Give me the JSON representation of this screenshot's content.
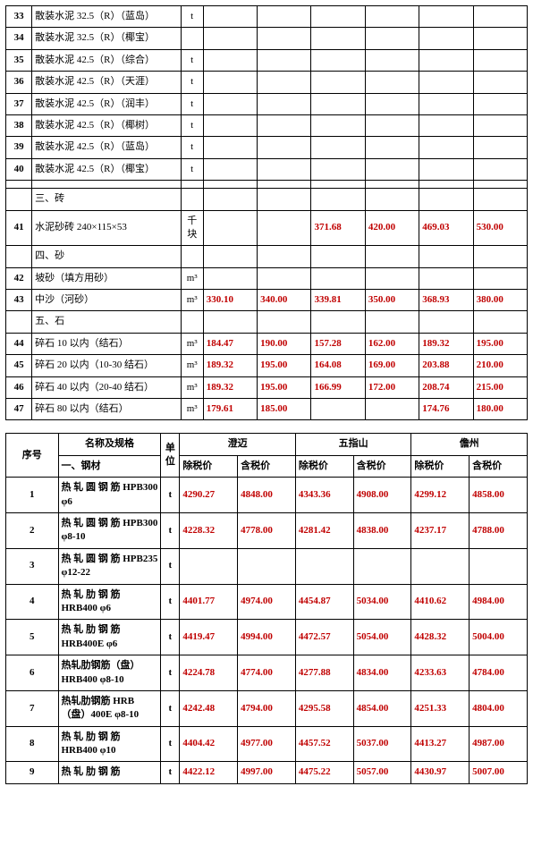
{
  "table1": {
    "cols": [
      "序号",
      "名称",
      "单位",
      "c1",
      "c2",
      "c3",
      "c4",
      "c5",
      "c6"
    ],
    "rows": [
      {
        "n": "33",
        "name": "散装水泥 32.5（R）（蓝岛）",
        "unit": "t",
        "v": [
          "",
          "",
          "",
          "",
          "",
          ""
        ]
      },
      {
        "n": "34",
        "name": "散装水泥 32.5（R）（椰宝）",
        "unit": "",
        "v": [
          "",
          "",
          "",
          "",
          "",
          ""
        ]
      },
      {
        "n": "35",
        "name": "散装水泥 42.5（R）（综合）",
        "unit": "t",
        "v": [
          "",
          "",
          "",
          "",
          "",
          ""
        ]
      },
      {
        "n": "36",
        "name": "散装水泥 42.5（R）（天涯）",
        "unit": "t",
        "v": [
          "",
          "",
          "",
          "",
          "",
          ""
        ]
      },
      {
        "n": "37",
        "name": "散装水泥 42.5（R）（润丰）",
        "unit": "t",
        "v": [
          "",
          "",
          "",
          "",
          "",
          ""
        ]
      },
      {
        "n": "38",
        "name": "散装水泥 42.5（R）（椰树）",
        "unit": "t",
        "v": [
          "",
          "",
          "",
          "",
          "",
          ""
        ]
      },
      {
        "n": "39",
        "name": "散装水泥 42.5（R）（蓝岛）",
        "unit": "t",
        "v": [
          "",
          "",
          "",
          "",
          "",
          ""
        ]
      },
      {
        "n": "40",
        "name": "散装水泥 42.5（R）（椰宝）",
        "unit": "t",
        "v": [
          "",
          "",
          "",
          "",
          "",
          ""
        ]
      },
      {
        "n": "",
        "name": "",
        "unit": "",
        "v": [
          "",
          "",
          "",
          "",
          "",
          ""
        ]
      },
      {
        "n": "",
        "name": "三、砖",
        "unit": "",
        "v": [
          "",
          "",
          "",
          "",
          "",
          ""
        ]
      },
      {
        "n": "41",
        "name": "水泥砂砖  240×115×53",
        "unit": "千块",
        "v": [
          "",
          "",
          "371.68",
          "420.00",
          "469.03",
          "530.00"
        ],
        "red": [
          2,
          3,
          4,
          5
        ]
      },
      {
        "n": "",
        "name": "四、砂",
        "unit": "",
        "v": [
          "",
          "",
          "",
          "",
          "",
          ""
        ]
      },
      {
        "n": "42",
        "name": "坡砂（填方用砂）",
        "unit": "m³",
        "v": [
          "",
          "",
          "",
          "",
          "",
          ""
        ]
      },
      {
        "n": "43",
        "name": "中沙（河砂）",
        "unit": "m³",
        "v": [
          "330.10",
          "340.00",
          "339.81",
          "350.00",
          "368.93",
          "380.00"
        ],
        "red": [
          0,
          1,
          2,
          3,
          4,
          5
        ]
      },
      {
        "n": "",
        "name": "五、石",
        "unit": "",
        "v": [
          "",
          "",
          "",
          "",
          "",
          ""
        ]
      },
      {
        "n": "44",
        "name": "碎石 10 以内（结石）",
        "unit": "m³",
        "v": [
          "184.47",
          "190.00",
          "157.28",
          "162.00",
          "189.32",
          "195.00"
        ],
        "red": [
          0,
          1,
          2,
          3,
          4,
          5
        ]
      },
      {
        "n": "45",
        "name": "碎石 20 以内（10-30 结石）",
        "unit": "m³",
        "v": [
          "189.32",
          "195.00",
          "164.08",
          "169.00",
          "203.88",
          "210.00"
        ],
        "red": [
          0,
          1,
          2,
          3,
          4,
          5
        ]
      },
      {
        "n": "46",
        "name": "碎石 40 以内（20-40 结石）",
        "unit": "m³",
        "v": [
          "189.32",
          "195.00",
          "166.99",
          "172.00",
          "208.74",
          "215.00"
        ],
        "red": [
          0,
          1,
          2,
          3,
          4,
          5
        ]
      },
      {
        "n": "47",
        "name": "碎石 80 以内（结石）",
        "unit": "m³",
        "v": [
          "179.61",
          "185.00",
          "",
          "",
          "174.76",
          "180.00"
        ],
        "red": [
          0,
          1,
          4,
          5
        ]
      }
    ]
  },
  "table2": {
    "header1": {
      "seq": "序号",
      "name": "名称及规格",
      "unit": "单位",
      "g1": "澄迈",
      "g2": "五指山",
      "g3": "儋州"
    },
    "header2": {
      "sub": "一、钢材",
      "labels": [
        "除税价",
        "含税价",
        "除税价",
        "含税价",
        "除税价",
        "含税价"
      ]
    },
    "rows": [
      {
        "n": "1",
        "name": "热 轧 圆 钢 筋 HPB300 φ6",
        "unit": "t",
        "v": [
          "4290.27",
          "4848.00",
          "4343.36",
          "4908.00",
          "4299.12",
          "4858.00"
        ]
      },
      {
        "n": "2",
        "name": "热 轧 圆 钢 筋 HPB300 φ8-10",
        "unit": "t",
        "v": [
          "4228.32",
          "4778.00",
          "4281.42",
          "4838.00",
          "4237.17",
          "4788.00"
        ]
      },
      {
        "n": "3",
        "name": "热 轧 圆 钢 筋 HPB235 φ12-22",
        "unit": "t",
        "v": [
          "",
          "",
          "",
          "",
          "",
          ""
        ],
        "noRed": true
      },
      {
        "n": "4",
        "name": "热 轧 肋 钢 筋 HRB400 φ6",
        "unit": "t",
        "v": [
          "4401.77",
          "4974.00",
          "4454.87",
          "5034.00",
          "4410.62",
          "4984.00"
        ]
      },
      {
        "n": "5",
        "name": "热 轧 肋 钢 筋 HRB400E φ6",
        "unit": "t",
        "v": [
          "4419.47",
          "4994.00",
          "4472.57",
          "5054.00",
          "4428.32",
          "5004.00"
        ]
      },
      {
        "n": "6",
        "name": "热轧肋钢筋（盘）HRB400 φ8-10",
        "unit": "t",
        "v": [
          "4224.78",
          "4774.00",
          "4277.88",
          "4834.00",
          "4233.63",
          "4784.00"
        ]
      },
      {
        "n": "7",
        "name": "热轧肋钢筋  HRB（盘）400E φ8-10",
        "unit": "t",
        "v": [
          "4242.48",
          "4794.00",
          "4295.58",
          "4854.00",
          "4251.33",
          "4804.00"
        ]
      },
      {
        "n": "8",
        "name": "热 轧 肋 钢 筋 HRB400 φ10",
        "unit": "t",
        "v": [
          "4404.42",
          "4977.00",
          "4457.52",
          "5037.00",
          "4413.27",
          "4987.00"
        ]
      },
      {
        "n": "9",
        "name": "热 轧 肋 钢 筋",
        "unit": "t",
        "v": [
          "4422.12",
          "4997.00",
          "4475.22",
          "5057.00",
          "4430.97",
          "5007.00"
        ]
      }
    ]
  },
  "colors": {
    "red": "#c00000",
    "black": "#000000"
  }
}
